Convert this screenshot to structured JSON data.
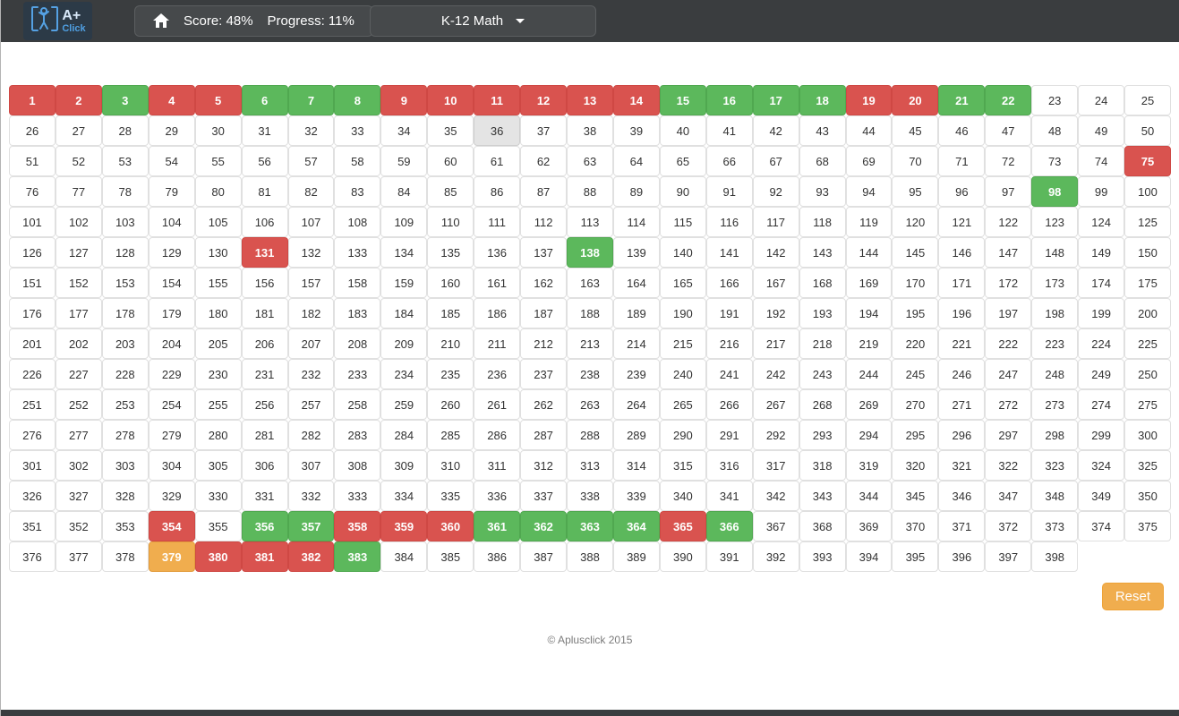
{
  "header": {
    "logo": {
      "line1": "A+",
      "line2": "Click"
    },
    "score_label": "Score: 48%",
    "progress_label": "Progress: 11%",
    "course_selector_label": "K-12 Math"
  },
  "grid": {
    "total_cells": 398,
    "columns": 25,
    "cell_states": {
      "red": [
        1,
        2,
        4,
        5,
        9,
        10,
        11,
        12,
        13,
        14,
        19,
        20,
        75,
        131,
        354,
        358,
        359,
        360,
        365,
        380,
        381,
        382
      ],
      "green": [
        3,
        6,
        7,
        8,
        15,
        16,
        17,
        18,
        21,
        22,
        98,
        138,
        356,
        357,
        361,
        362,
        363,
        364,
        366,
        383
      ],
      "orange": [
        379
      ],
      "highlighted": [
        36
      ]
    },
    "colors": {
      "red": "#d9534f",
      "green": "#5cb85c",
      "orange": "#f0ad4e",
      "highlight": "#e4e4e4"
    }
  },
  "actions": {
    "reset_label": "Reset"
  },
  "footer": {
    "copyright": "© Aplusclick 2015"
  }
}
